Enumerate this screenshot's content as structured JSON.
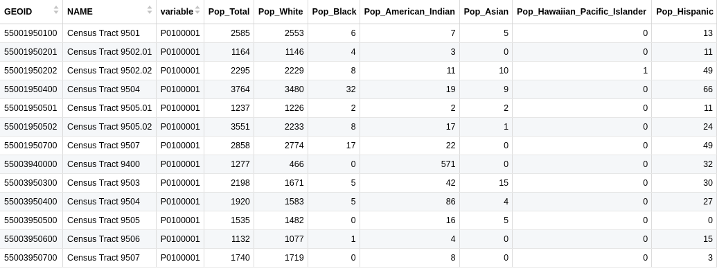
{
  "columns": [
    {
      "key": "GEOID",
      "label": "GEOID",
      "align": "left",
      "sortable": true
    },
    {
      "key": "NAME",
      "label": "NAME",
      "align": "left",
      "sortable": true
    },
    {
      "key": "variable",
      "label": "variable",
      "align": "left",
      "sortable": true
    },
    {
      "key": "Pop_Total",
      "label": "Pop_Total",
      "align": "right",
      "sortable": false
    },
    {
      "key": "Pop_White",
      "label": "Pop_White",
      "align": "right",
      "sortable": false
    },
    {
      "key": "Pop_Black",
      "label": "Pop_Black",
      "align": "right",
      "sortable": false
    },
    {
      "key": "Pop_American_Indian",
      "label": "Pop_American_Indian",
      "align": "right",
      "sortable": false
    },
    {
      "key": "Pop_Asian",
      "label": "Pop_Asian",
      "align": "right",
      "sortable": false
    },
    {
      "key": "Pop_Hawaiian_Pacific_Islander",
      "label": "Pop_Hawaiian_Pacific_Islander",
      "align": "right",
      "sortable": false
    },
    {
      "key": "Pop_Hispanic",
      "label": "Pop_Hispanic",
      "align": "right",
      "sortable": false
    }
  ],
  "rows": [
    [
      "55001950100",
      "Census Tract 9501",
      "P0100001",
      "2585",
      "2553",
      "6",
      "7",
      "5",
      "0",
      "13"
    ],
    [
      "55001950201",
      "Census Tract 9502.01",
      "P0100001",
      "1164",
      "1146",
      "4",
      "3",
      "0",
      "0",
      "11"
    ],
    [
      "55001950202",
      "Census Tract 9502.02",
      "P0100001",
      "2295",
      "2229",
      "8",
      "11",
      "10",
      "1",
      "49"
    ],
    [
      "55001950400",
      "Census Tract 9504",
      "P0100001",
      "3764",
      "3480",
      "32",
      "19",
      "9",
      "0",
      "66"
    ],
    [
      "55001950501",
      "Census Tract 9505.01",
      "P0100001",
      "1237",
      "1226",
      "2",
      "2",
      "2",
      "0",
      "11"
    ],
    [
      "55001950502",
      "Census Tract 9505.02",
      "P0100001",
      "3551",
      "2233",
      "8",
      "17",
      "1",
      "0",
      "24"
    ],
    [
      "55001950700",
      "Census Tract 9507",
      "P0100001",
      "2858",
      "2774",
      "17",
      "22",
      "0",
      "0",
      "49"
    ],
    [
      "55003940000",
      "Census Tract 9400",
      "P0100001",
      "1277",
      "466",
      "0",
      "571",
      "0",
      "0",
      "32"
    ],
    [
      "55003950300",
      "Census Tract 9503",
      "P0100001",
      "2198",
      "1671",
      "5",
      "42",
      "15",
      "0",
      "30"
    ],
    [
      "55003950400",
      "Census Tract 9504",
      "P0100001",
      "1920",
      "1583",
      "5",
      "86",
      "4",
      "0",
      "27"
    ],
    [
      "55003950500",
      "Census Tract 9505",
      "P0100001",
      "1535",
      "1482",
      "0",
      "16",
      "5",
      "0",
      "0"
    ],
    [
      "55003950600",
      "Census Tract 9506",
      "P0100001",
      "1132",
      "1077",
      "1",
      "4",
      "0",
      "0",
      "15"
    ],
    [
      "55003950700",
      "Census Tract 9507",
      "P0100001",
      "1740",
      "1719",
      "0",
      "8",
      "0",
      "0",
      "3"
    ]
  ],
  "icons": {
    "sort": "sort-arrows-icon"
  },
  "colors": {
    "header_bg": "#ffffff",
    "row_alt_bg": "#f5f7f9",
    "grid_line": "#dcdcdc",
    "sort_icon": "#c4c4c4"
  }
}
